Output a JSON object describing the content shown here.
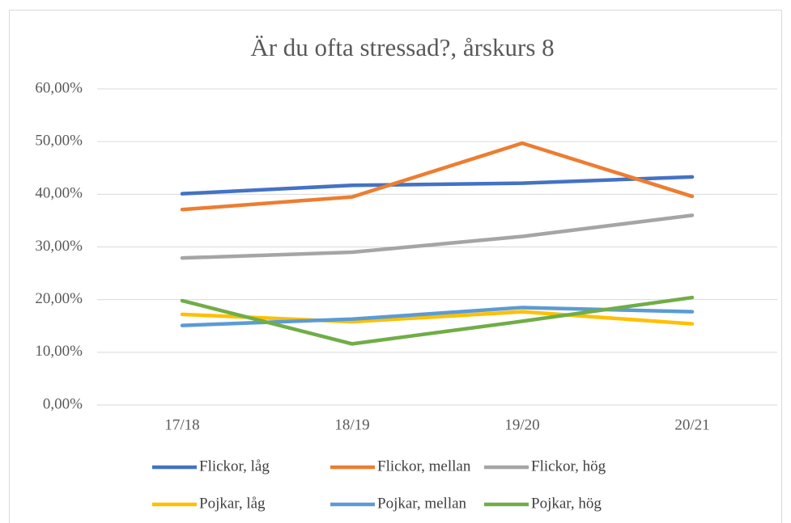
{
  "chart_data": {
    "type": "line",
    "title": "Är du ofta stressad?, årskurs 8",
    "categories": [
      "17/18",
      "18/19",
      "19/20",
      "20/21"
    ],
    "series": [
      {
        "name": "Flickor, låg",
        "color": "#4472c4",
        "values": [
          40.1,
          41.7,
          42.1,
          43.3
        ]
      },
      {
        "name": "Flickor, mellan",
        "color": "#ed7d31",
        "values": [
          37.1,
          39.5,
          49.7,
          39.6
        ]
      },
      {
        "name": "Flickor, hög",
        "color": "#a5a5a5",
        "values": [
          27.9,
          29.0,
          32.0,
          36.0
        ]
      },
      {
        "name": "Pojkar, låg",
        "color": "#ffc000",
        "values": [
          17.2,
          15.8,
          17.7,
          15.4
        ]
      },
      {
        "name": "Pojkar, mellan",
        "color": "#5b9bd5",
        "values": [
          15.1,
          16.3,
          18.5,
          17.7
        ]
      },
      {
        "name": "Pojkar, hög",
        "color": "#70ad47",
        "values": [
          19.8,
          11.6,
          15.9,
          20.4
        ]
      }
    ],
    "ylim": [
      0,
      60
    ],
    "yticks": [
      {
        "value": 0,
        "label": "0,00%"
      },
      {
        "value": 10,
        "label": "10,00%"
      },
      {
        "value": 20,
        "label": "20,00%"
      },
      {
        "value": 30,
        "label": "30,00%"
      },
      {
        "value": 40,
        "label": "40,00%"
      },
      {
        "value": 50,
        "label": "50,00%"
      },
      {
        "value": 60,
        "label": "60,00%"
      }
    ],
    "grid": true,
    "legend": "bottom"
  }
}
